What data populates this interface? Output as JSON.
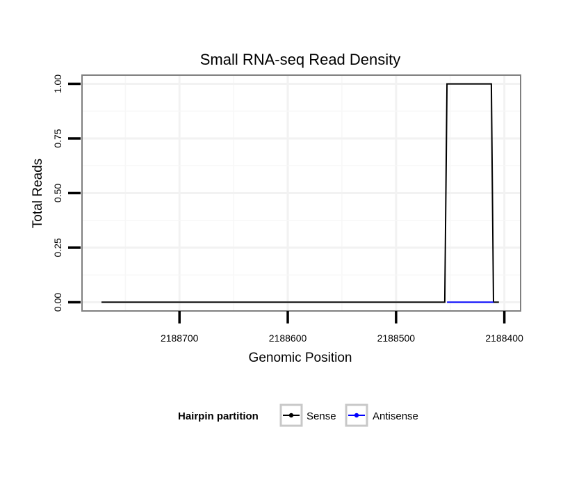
{
  "chart_data": {
    "type": "line",
    "title": "Small RNA-seq Read Density",
    "xlabel": "Genomic Position",
    "ylabel": "Total Reads",
    "xlim": [
      2188790,
      2188385
    ],
    "x_reversed": true,
    "ylim": [
      -0.04,
      1.04
    ],
    "x_ticks": [
      2188700,
      2188600,
      2188500,
      2188400
    ],
    "x_tick_labels": [
      "2188700",
      "2188600",
      "2188500",
      "2188400"
    ],
    "y_ticks": [
      0,
      0.25,
      0.5,
      0.75,
      1.0
    ],
    "y_tick_labels": [
      "0.00",
      "0.25",
      "0.50",
      "0.75",
      "1.00"
    ],
    "grid": true,
    "series": [
      {
        "name": "Sense",
        "color": "#000000",
        "x": [
          2188772,
          2188455,
          2188453,
          2188412,
          2188410,
          2188405
        ],
        "values": [
          0,
          0,
          1,
          1,
          0,
          0
        ]
      },
      {
        "name": "Antisense",
        "color": "#0000ff",
        "x": [
          2188453,
          2188410
        ],
        "values": [
          0,
          0
        ]
      }
    ],
    "legend": {
      "title": "Hairpin partition",
      "position": "bottom",
      "entries": [
        "Sense",
        "Antisense"
      ]
    }
  }
}
